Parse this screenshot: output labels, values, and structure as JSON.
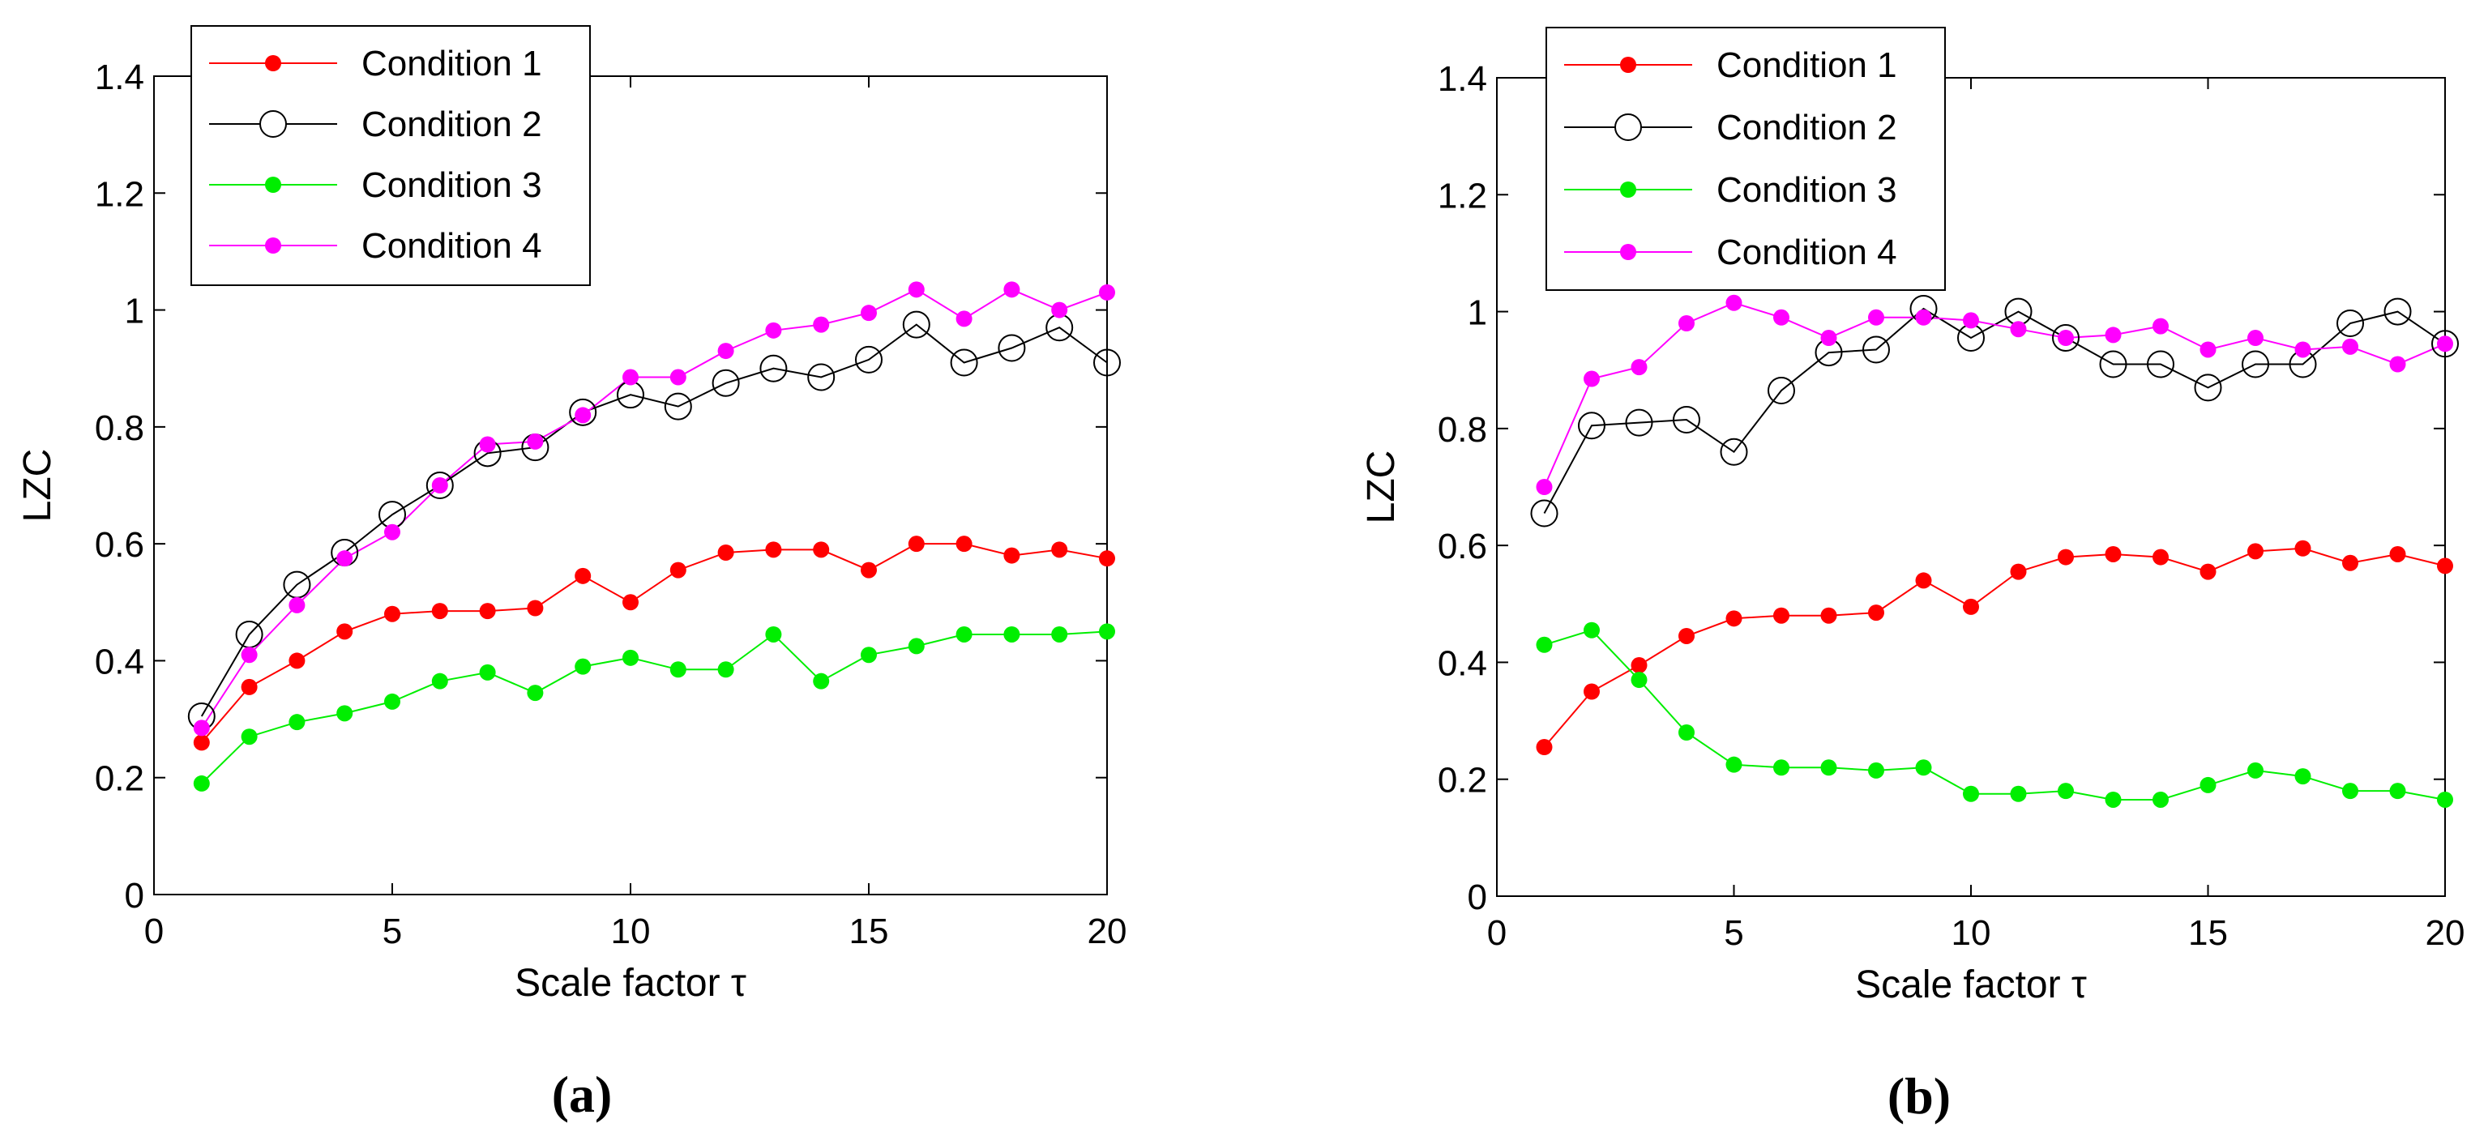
{
  "chart_data": [
    {
      "type": "line",
      "panel_label": "(a)",
      "xlabel": "Scale factor τ",
      "ylabel": "LZC",
      "xlim": [
        0,
        20
      ],
      "ylim": [
        0,
        1.4
      ],
      "xticks": [
        0,
        5,
        10,
        15,
        20
      ],
      "yticks": [
        0,
        0.2,
        0.4,
        0.6,
        0.8,
        1,
        1.2,
        1.4
      ],
      "ytick_labels": [
        "0",
        "0.2",
        "0.4",
        "0.6",
        "0.8",
        "1",
        "1.2",
        "1.4"
      ],
      "legend_position": "top-left",
      "x": [
        1,
        2,
        3,
        4,
        5,
        6,
        7,
        8,
        9,
        10,
        11,
        12,
        13,
        14,
        15,
        16,
        17,
        18,
        19,
        20
      ],
      "series": [
        {
          "name": "Condition 1",
          "color": "#ff0000",
          "marker": "filled",
          "values": [
            0.26,
            0.355,
            0.4,
            0.45,
            0.48,
            0.485,
            0.485,
            0.49,
            0.545,
            0.5,
            0.555,
            0.585,
            0.59,
            0.59,
            0.555,
            0.6,
            0.6,
            0.58,
            0.59,
            0.575
          ]
        },
        {
          "name": "Condition 2",
          "color": "#000000",
          "marker": "open",
          "values": [
            0.305,
            0.445,
            0.53,
            0.585,
            0.65,
            0.7,
            0.755,
            0.765,
            0.825,
            0.855,
            0.835,
            0.875,
            0.9,
            0.885,
            0.915,
            0.975,
            0.91,
            0.935,
            0.97,
            0.91
          ]
        },
        {
          "name": "Condition 3",
          "color": "#00ee00",
          "marker": "filled",
          "values": [
            0.19,
            0.27,
            0.295,
            0.31,
            0.33,
            0.365,
            0.38,
            0.345,
            0.39,
            0.405,
            0.385,
            0.385,
            0.445,
            0.365,
            0.41,
            0.425,
            0.445,
            0.445,
            0.445,
            0.45
          ]
        },
        {
          "name": "Condition 4",
          "color": "#ff00ff",
          "marker": "filled",
          "values": [
            0.285,
            0.41,
            0.495,
            0.575,
            0.62,
            0.7,
            0.77,
            0.775,
            0.82,
            0.885,
            0.885,
            0.93,
            0.965,
            0.975,
            0.995,
            1.035,
            0.985,
            1.035,
            1.0,
            1.03
          ]
        }
      ]
    },
    {
      "type": "line",
      "panel_label": "(b)",
      "xlabel": "Scale factor τ",
      "ylabel": "LZC",
      "xlim": [
        0,
        20
      ],
      "ylim": [
        0,
        1.4
      ],
      "xticks": [
        0,
        5,
        10,
        15,
        20
      ],
      "yticks": [
        0,
        0.2,
        0.4,
        0.6,
        0.8,
        1,
        1.2,
        1.4
      ],
      "ytick_labels": [
        "0",
        "0.2",
        "0.4",
        "0.6",
        "0.8",
        "1",
        "1.2",
        "1.4"
      ],
      "legend_position": "top-left",
      "x": [
        1,
        2,
        3,
        4,
        5,
        6,
        7,
        8,
        9,
        10,
        11,
        12,
        13,
        14,
        15,
        16,
        17,
        18,
        19,
        20
      ],
      "series": [
        {
          "name": "Condition 1",
          "color": "#ff0000",
          "marker": "filled",
          "values": [
            0.255,
            0.35,
            0.395,
            0.445,
            0.475,
            0.48,
            0.48,
            0.485,
            0.54,
            0.495,
            0.555,
            0.58,
            0.585,
            0.58,
            0.555,
            0.59,
            0.595,
            0.57,
            0.585,
            0.565
          ]
        },
        {
          "name": "Condition 2",
          "color": "#000000",
          "marker": "open",
          "values": [
            0.655,
            0.805,
            0.81,
            0.815,
            0.76,
            0.865,
            0.93,
            0.935,
            1.005,
            0.955,
            1.0,
            0.955,
            0.91,
            0.91,
            0.87,
            0.91,
            0.91,
            0.98,
            1.0,
            0.945
          ]
        },
        {
          "name": "Condition 3",
          "color": "#00ee00",
          "marker": "filled",
          "values": [
            0.43,
            0.455,
            0.37,
            0.28,
            0.225,
            0.22,
            0.22,
            0.215,
            0.22,
            0.175,
            0.175,
            0.18,
            0.165,
            0.165,
            0.19,
            0.215,
            0.205,
            0.18,
            0.18,
            0.165
          ]
        },
        {
          "name": "Condition 4",
          "color": "#ff00ff",
          "marker": "filled",
          "values": [
            0.7,
            0.885,
            0.905,
            0.98,
            1.015,
            0.99,
            0.955,
            0.99,
            0.99,
            0.985,
            0.97,
            0.955,
            0.96,
            0.975,
            0.935,
            0.955,
            0.935,
            0.94,
            0.91,
            0.945
          ]
        }
      ]
    }
  ]
}
